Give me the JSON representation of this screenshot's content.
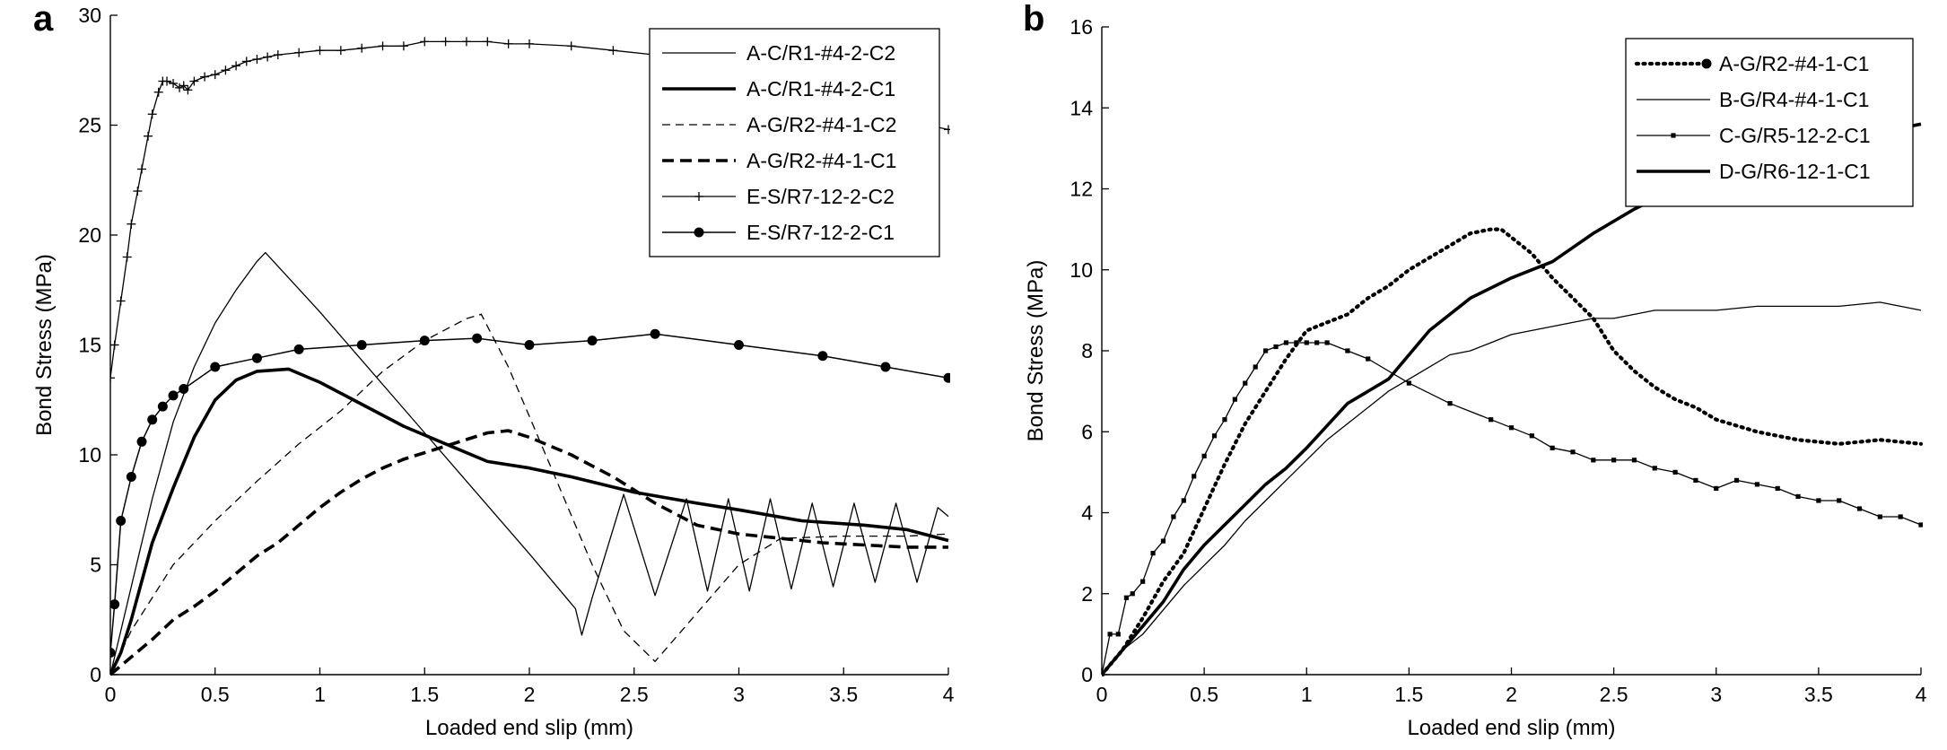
{
  "chart_data": [
    {
      "type": "line",
      "panel_label": "a",
      "xlabel": "Loaded end slip (mm)",
      "ylabel": "Bond Stress (MPa)",
      "xlim": [
        0,
        4
      ],
      "ylim": [
        0,
        30
      ],
      "xticks": [
        0,
        0.5,
        1,
        1.5,
        2,
        2.5,
        3,
        3.5,
        4
      ],
      "xtick_labels": [
        "0",
        "0.5",
        "1",
        "1.5",
        "2",
        "2.5",
        "3",
        "3.5",
        "4"
      ],
      "yticks": [
        0,
        5,
        10,
        15,
        20,
        25,
        30
      ],
      "ytick_labels": [
        "0",
        "5",
        "10",
        "15",
        "20",
        "25",
        "30"
      ],
      "legend_position": "top-right",
      "series": [
        {
          "name": "A-C/R1-#4-2-C2",
          "style": "thin-solid",
          "x": [
            0,
            0.05,
            0.1,
            0.2,
            0.3,
            0.4,
            0.5,
            0.6,
            0.7,
            0.74,
            1.0,
            1.5,
            2.0,
            2.22,
            2.25,
            2.3,
            2.45,
            2.6,
            2.75,
            2.85,
            2.95,
            3.05,
            3.15,
            3.25,
            3.35,
            3.45,
            3.55,
            3.65,
            3.75,
            3.85,
            3.95,
            4.0
          ],
          "y": [
            0,
            2,
            4,
            8,
            11.5,
            14,
            16,
            17.5,
            18.8,
            19.2,
            16.5,
            11,
            5.5,
            3,
            1.8,
            3.5,
            8.2,
            3.6,
            8,
            3.8,
            8,
            3.8,
            8,
            3.9,
            7.8,
            4.0,
            7.8,
            4.2,
            7.8,
            4.2,
            7.6,
            7.2
          ]
        },
        {
          "name": "A-C/R1-#4-2-C1",
          "style": "thick-solid",
          "x": [
            0,
            0.05,
            0.1,
            0.2,
            0.3,
            0.4,
            0.5,
            0.6,
            0.7,
            0.85,
            1.0,
            1.2,
            1.4,
            1.6,
            1.8,
            2.0,
            2.2,
            2.5,
            2.8,
            3.0,
            3.3,
            3.6,
            3.8,
            4.0
          ],
          "y": [
            0,
            1,
            2.5,
            6,
            8.5,
            10.8,
            12.5,
            13.4,
            13.8,
            13.9,
            13.3,
            12.3,
            11.3,
            10.5,
            9.7,
            9.4,
            9.0,
            8.3,
            7.8,
            7.5,
            7.0,
            6.8,
            6.6,
            6.1
          ]
        },
        {
          "name": "A-G/R2-#4-1-C2",
          "style": "thin-dashed",
          "x": [
            0,
            0.1,
            0.3,
            0.5,
            0.7,
            0.9,
            1.1,
            1.3,
            1.5,
            1.7,
            1.77,
            1.9,
            2.1,
            2.3,
            2.45,
            2.6,
            2.8,
            3.0,
            3.2,
            3.5,
            3.8,
            4.0
          ],
          "y": [
            0,
            2,
            5,
            7,
            8.8,
            10.5,
            12,
            13.8,
            15.2,
            16.2,
            16.4,
            14.0,
            9.5,
            5.0,
            2.0,
            0.6,
            2.8,
            5.0,
            6.2,
            6.3,
            6.3,
            6.4
          ]
        },
        {
          "name": "A-G/R2-#4-1-C1",
          "style": "thick-dashed",
          "x": [
            0,
            0.1,
            0.2,
            0.3,
            0.4,
            0.5,
            0.6,
            0.7,
            0.8,
            0.9,
            1.0,
            1.1,
            1.2,
            1.3,
            1.4,
            1.5,
            1.6,
            1.7,
            1.8,
            1.9,
            2.0,
            2.1,
            2.2,
            2.3,
            2.4,
            2.5,
            2.6,
            2.7,
            2.8,
            2.9,
            3.0,
            3.2,
            3.4,
            3.6,
            3.8,
            4.0
          ],
          "y": [
            0,
            0.8,
            1.6,
            2.5,
            3.1,
            3.8,
            4.6,
            5.4,
            6.0,
            6.8,
            7.6,
            8.3,
            8.9,
            9.4,
            9.8,
            10.1,
            10.4,
            10.7,
            11.0,
            11.1,
            10.8,
            10.4,
            10.0,
            9.5,
            9.0,
            8.4,
            7.8,
            7.3,
            6.8,
            6.6,
            6.4,
            6.2,
            6.0,
            5.9,
            5.8,
            5.8
          ]
        },
        {
          "name": "E-S/R7-12-2-C2",
          "style": "thin-plus",
          "x": [
            0,
            0.02,
            0.05,
            0.08,
            0.1,
            0.13,
            0.15,
            0.18,
            0.2,
            0.23,
            0.25,
            0.27,
            0.3,
            0.33,
            0.35,
            0.37,
            0.4,
            0.45,
            0.5,
            0.55,
            0.6,
            0.65,
            0.7,
            0.75,
            0.8,
            0.9,
            1.0,
            1.1,
            1.2,
            1.3,
            1.4,
            1.5,
            1.6,
            1.7,
            1.8,
            1.9,
            2.0,
            2.2,
            2.4,
            2.6,
            3.0,
            3.5,
            4.0
          ],
          "y": [
            13.5,
            15,
            17,
            19,
            20.5,
            22,
            23,
            24.5,
            25.5,
            26.5,
            27,
            27,
            26.9,
            26.7,
            26.8,
            26.6,
            27,
            27.2,
            27.3,
            27.5,
            27.7,
            27.9,
            28.0,
            28.1,
            28.2,
            28.3,
            28.4,
            28.4,
            28.5,
            28.6,
            28.6,
            28.8,
            28.8,
            28.8,
            28.8,
            28.7,
            28.7,
            28.6,
            28.4,
            28.2,
            26.0,
            25.8,
            24.8
          ]
        },
        {
          "name": "E-S/R7-12-2-C1",
          "style": "thin-dots",
          "x": [
            0,
            0.02,
            0.05,
            0.1,
            0.15,
            0.2,
            0.25,
            0.3,
            0.35,
            0.5,
            0.7,
            0.9,
            1.2,
            1.5,
            1.75,
            2.0,
            2.3,
            2.6,
            3.0,
            3.4,
            3.7,
            4.0
          ],
          "y": [
            1.0,
            3.2,
            7.0,
            9.0,
            10.6,
            11.6,
            12.2,
            12.7,
            13.0,
            14.0,
            14.4,
            14.8,
            15.0,
            15.2,
            15.3,
            15.0,
            15.2,
            15.5,
            15.0,
            14.5,
            14.0,
            13.5
          ]
        }
      ]
    },
    {
      "type": "line",
      "panel_label": "b",
      "xlabel": "Loaded end slip (mm)",
      "ylabel": "Bond Stress (MPa)",
      "xlim": [
        0,
        4
      ],
      "ylim": [
        0,
        16
      ],
      "xticks": [
        0,
        0.5,
        1,
        1.5,
        2,
        2.5,
        3,
        3.5,
        4
      ],
      "xtick_labels": [
        "0",
        "0.5",
        "1",
        "1.5",
        "2",
        "2.5",
        "3",
        "3.5",
        "4"
      ],
      "yticks": [
        0,
        2,
        4,
        6,
        8,
        10,
        12,
        14,
        16
      ],
      "ytick_labels": [
        "0",
        "2",
        "4",
        "6",
        "8",
        "10",
        "12",
        "14",
        "16"
      ],
      "legend_position": "top-right",
      "series": [
        {
          "name": "A-G/R2-#4-1-C1",
          "style": "thick-dotted",
          "x": [
            0,
            0.1,
            0.2,
            0.3,
            0.4,
            0.5,
            0.6,
            0.7,
            0.8,
            0.9,
            1.0,
            1.1,
            1.2,
            1.3,
            1.4,
            1.5,
            1.6,
            1.7,
            1.8,
            1.9,
            1.95,
            2.0,
            2.1,
            2.2,
            2.3,
            2.4,
            2.5,
            2.6,
            2.7,
            2.8,
            2.9,
            3.0,
            3.2,
            3.4,
            3.6,
            3.8,
            4.0
          ],
          "y": [
            0,
            0.6,
            1.4,
            2.3,
            3.0,
            4.1,
            5.2,
            6.2,
            7.0,
            7.8,
            8.5,
            8.7,
            8.9,
            9.3,
            9.6,
            10.0,
            10.3,
            10.6,
            10.9,
            11.0,
            11.0,
            10.8,
            10.4,
            9.8,
            9.3,
            8.8,
            8.0,
            7.5,
            7.1,
            6.8,
            6.6,
            6.3,
            6.0,
            5.8,
            5.7,
            5.8,
            5.7
          ]
        },
        {
          "name": "B-G/R4-#4-1-C1",
          "style": "thin-solid",
          "x": [
            0,
            0.1,
            0.2,
            0.3,
            0.4,
            0.5,
            0.6,
            0.7,
            0.8,
            0.9,
            1.0,
            1.1,
            1.2,
            1.3,
            1.4,
            1.5,
            1.6,
            1.7,
            1.8,
            1.9,
            2.0,
            2.1,
            2.2,
            2.3,
            2.4,
            2.5,
            2.6,
            2.7,
            2.8,
            2.9,
            3.0,
            3.2,
            3.4,
            3.6,
            3.8,
            4.0
          ],
          "y": [
            0,
            0.6,
            1.0,
            1.6,
            2.2,
            2.7,
            3.2,
            3.8,
            4.3,
            4.8,
            5.3,
            5.8,
            6.2,
            6.6,
            7.0,
            7.3,
            7.6,
            7.9,
            8.0,
            8.2,
            8.4,
            8.5,
            8.6,
            8.7,
            8.8,
            8.8,
            8.9,
            9.0,
            9.0,
            9.0,
            9.0,
            9.1,
            9.1,
            9.1,
            9.2,
            9.0
          ]
        },
        {
          "name": "C-G/R5-12-2-C1",
          "style": "thin-squares",
          "x": [
            0,
            0.04,
            0.08,
            0.12,
            0.15,
            0.2,
            0.25,
            0.3,
            0.35,
            0.4,
            0.45,
            0.5,
            0.55,
            0.6,
            0.65,
            0.7,
            0.75,
            0.8,
            0.85,
            0.9,
            0.95,
            1.0,
            1.05,
            1.1,
            1.2,
            1.3,
            1.5,
            1.7,
            1.9,
            2.0,
            2.1,
            2.2,
            2.3,
            2.4,
            2.5,
            2.6,
            2.7,
            2.8,
            2.9,
            3.0,
            3.1,
            3.2,
            3.3,
            3.4,
            3.5,
            3.6,
            3.7,
            3.8,
            3.9,
            4.0
          ],
          "y": [
            0,
            1.0,
            1.0,
            1.9,
            2.0,
            2.3,
            3.0,
            3.3,
            3.9,
            4.3,
            4.9,
            5.4,
            5.9,
            6.3,
            6.8,
            7.2,
            7.6,
            8.0,
            8.1,
            8.2,
            8.2,
            8.2,
            8.2,
            8.2,
            8.0,
            7.8,
            7.2,
            6.7,
            6.3,
            6.1,
            5.9,
            5.6,
            5.5,
            5.3,
            5.3,
            5.3,
            5.1,
            5.0,
            4.8,
            4.6,
            4.8,
            4.7,
            4.6,
            4.4,
            4.3,
            4.3,
            4.1,
            3.9,
            3.9,
            3.7
          ]
        },
        {
          "name": "D-G/R6-12-1-C1",
          "style": "thick-solid",
          "x": [
            0,
            0.1,
            0.2,
            0.3,
            0.4,
            0.5,
            0.6,
            0.7,
            0.8,
            0.9,
            1.0,
            1.2,
            1.4,
            1.6,
            1.8,
            2.0,
            2.2,
            2.4,
            2.6,
            2.8,
            3.0,
            3.2,
            3.4,
            3.6,
            3.8,
            4.0
          ],
          "y": [
            0,
            0.6,
            1.2,
            1.8,
            2.6,
            3.2,
            3.7,
            4.2,
            4.7,
            5.1,
            5.6,
            6.7,
            7.3,
            8.5,
            9.3,
            9.8,
            10.2,
            10.9,
            11.5,
            12.0,
            12.3,
            12.7,
            13.0,
            13.2,
            13.4,
            13.6
          ]
        }
      ]
    }
  ]
}
